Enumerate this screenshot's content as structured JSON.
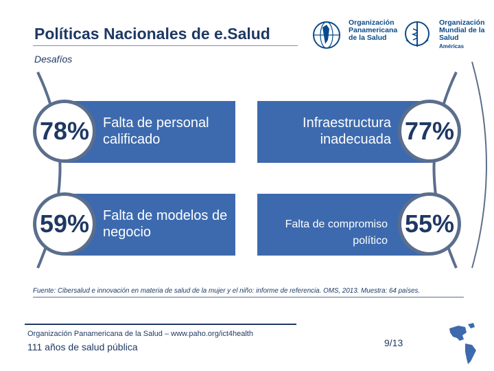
{
  "header": {
    "title": "Políticas Nacionales de e.Salud",
    "subtitle": "Desafíos"
  },
  "logos": [
    {
      "name": "Organización Panamericana de la Salud",
      "lines": [
        "Organización",
        "Panamericana",
        "de la Salud"
      ]
    },
    {
      "name": "Organización Mundial de la Salud",
      "lines": [
        "Organización",
        "Mundial de la Salud"
      ],
      "tag": "Américas"
    }
  ],
  "challenges": [
    {
      "percent": "78%",
      "label_lines": [
        "Falta de personal",
        "calificado"
      ]
    },
    {
      "percent": "77%",
      "label_lines": [
        "Infraestructura",
        "inadecuada"
      ]
    },
    {
      "percent": "59%",
      "label_lines": [
        "Falta de modelos de",
        "negocio"
      ]
    },
    {
      "percent": "55%",
      "label_lines": [
        "Falta de compromiso político"
      ]
    }
  ],
  "source": "Fuente: Cibersalud e innovación en materia de salud de la mujer y el niño: informe de referencia. OMS, 2013. Muestra: 64 países.",
  "footer": {
    "org": "Organización Panamericana de la Salud – www.paho.org/ict4health",
    "years": "111 años de salud pública",
    "page": "9/13"
  },
  "colors": {
    "navy": "#1f3864",
    "bar_blue": "#3d6aae",
    "ring": "#5b6e8c"
  }
}
